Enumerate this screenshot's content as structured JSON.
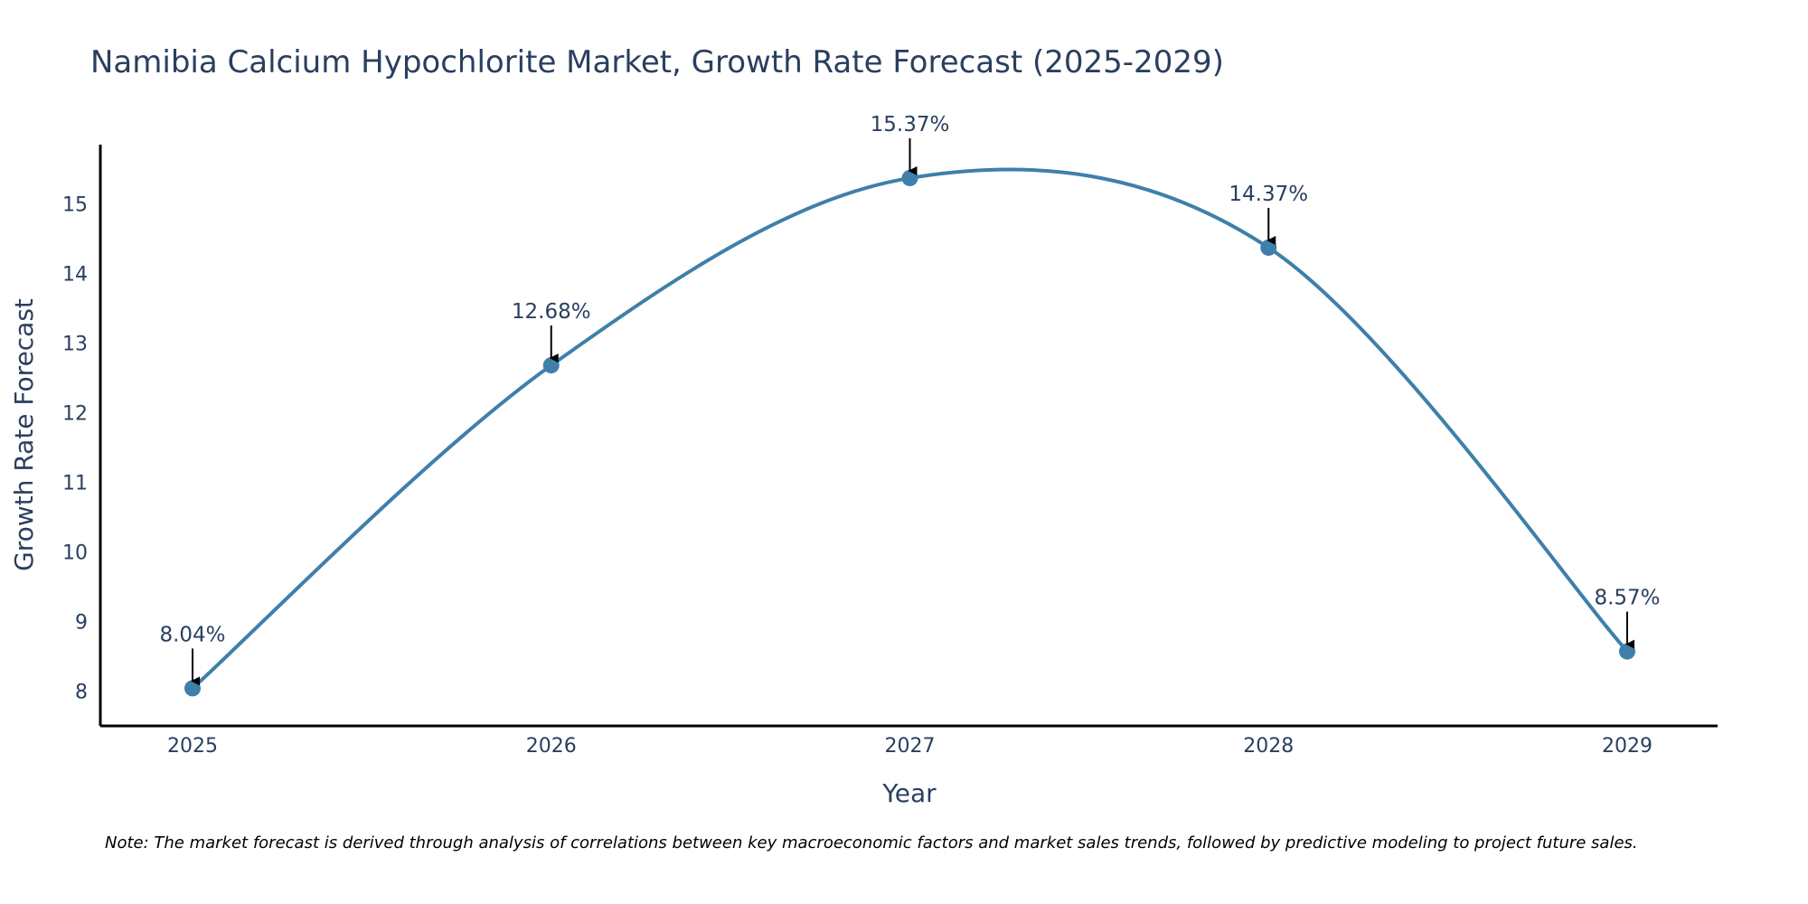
{
  "chart_data": {
    "type": "line",
    "title": "Namibia Calcium Hypochlorite Market, Growth Rate Forecast (2025-2029)",
    "xlabel": "Year",
    "ylabel": "Growth Rate Forecast",
    "categories": [
      "2025",
      "2026",
      "2027",
      "2028",
      "2029"
    ],
    "series": [
      {
        "name": "Growth Rate Forecast",
        "values": [
          8.04,
          12.68,
          15.37,
          14.37,
          8.57
        ],
        "labels": [
          "8.04%",
          "12.68%",
          "15.37%",
          "14.37%",
          "8.57%"
        ]
      }
    ],
    "ylim": [
      7.5,
      15.85
    ],
    "yticks": [
      8,
      9,
      10,
      11,
      12,
      13,
      14,
      15
    ],
    "line_color": "#3f7fab",
    "marker_color": "#3f7fab",
    "arrow_color": "#000000",
    "smooth": true,
    "grid": false
  },
  "note": "Note: The market forecast is derived through analysis of correlations between key macroeconomic factors and market sales trends, followed by predictive modeling to project future sales."
}
